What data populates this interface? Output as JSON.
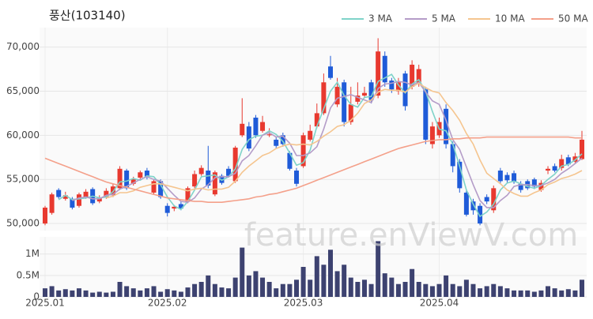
{
  "watermark": "feature.enViewV.com",
  "chart_data": [
    {
      "type": "candlestick",
      "title": "풍산(103140)",
      "open": [
        50000,
        51200,
        53800,
        52800,
        52800,
        52000,
        53000,
        53900,
        52500,
        53000,
        53200,
        54000,
        56000,
        54500,
        55200,
        56000,
        53500,
        54800,
        52000,
        51700,
        52200,
        52500,
        54200,
        55600,
        56000,
        53300,
        55400,
        56200,
        54800,
        60000,
        61000,
        62000,
        60500,
        60000,
        59500,
        60000,
        58000,
        56000,
        56500,
        59500,
        61000,
        62500,
        67800,
        63500,
        66000,
        61500,
        63800,
        64500,
        66000,
        64500,
        69000,
        66200,
        65000,
        67000,
        65500,
        65800,
        65200,
        59000,
        60000,
        63000,
        59000,
        57000,
        53500,
        52500,
        52000,
        53000,
        51500,
        56000,
        55500,
        55700,
        54500,
        54800,
        55000,
        53800,
        56000,
        56500,
        56300,
        57500,
        57000,
        57300
      ],
      "high": [
        52000,
        53500,
        54000,
        53600,
        53000,
        53500,
        53900,
        54100,
        53200,
        54000,
        54500,
        56500,
        56200,
        55300,
        56000,
        56300,
        55000,
        55000,
        52300,
        52100,
        52500,
        54200,
        56000,
        56600,
        58800,
        56000,
        55600,
        56500,
        58800,
        64200,
        61500,
        62300,
        62200,
        60800,
        59800,
        60300,
        58200,
        56300,
        60300,
        61200,
        63600,
        67000,
        69000,
        66500,
        66300,
        65500,
        66000,
        65500,
        66300,
        71000,
        69500,
        66500,
        66500,
        67300,
        68500,
        68000,
        65500,
        61500,
        62000,
        63500,
        59300,
        57300,
        53800,
        52800,
        52300,
        53300,
        54300,
        56300,
        55800,
        56000,
        54800,
        55000,
        55200,
        54900,
        56500,
        56800,
        57800,
        57800,
        58000,
        60500
      ],
      "low": [
        49800,
        51000,
        52800,
        52600,
        51600,
        51800,
        52800,
        52100,
        52300,
        52800,
        53000,
        53800,
        53800,
        54300,
        55000,
        55000,
        53300,
        52800,
        50800,
        51400,
        51500,
        52300,
        54000,
        55400,
        54000,
        53100,
        54400,
        55200,
        54600,
        59800,
        58200,
        59700,
        60300,
        59800,
        58500,
        58700,
        56000,
        54200,
        56300,
        59300,
        60800,
        62300,
        66300,
        63200,
        61000,
        61200,
        63500,
        64200,
        63600,
        64200,
        65500,
        64800,
        64600,
        62800,
        65200,
        65500,
        59000,
        58500,
        59700,
        58500,
        55800,
        53500,
        50800,
        51000,
        49800,
        52200,
        51200,
        54500,
        54600,
        54500,
        53500,
        53800,
        53900,
        53600,
        55600,
        55800,
        56000,
        56500,
        56800,
        57200
      ],
      "close": [
        51800,
        53300,
        53000,
        53200,
        51800,
        53300,
        53600,
        52300,
        52900,
        53700,
        54200,
        56200,
        54000,
        55000,
        55800,
        55300,
        54800,
        53000,
        51200,
        51900,
        51700,
        54000,
        55600,
        56300,
        54300,
        55800,
        54600,
        55400,
        58600,
        61300,
        58500,
        60000,
        61500,
        60100,
        58800,
        59000,
        56200,
        54500,
        60000,
        60500,
        62500,
        66000,
        66500,
        65500,
        61500,
        63500,
        64500,
        64800,
        64000,
        69500,
        66000,
        65200,
        66000,
        63300,
        68000,
        67500,
        59500,
        61000,
        61500,
        59000,
        56500,
        54000,
        51000,
        51500,
        50000,
        52500,
        54000,
        54800,
        54900,
        54700,
        53800,
        54000,
        54200,
        54600,
        56200,
        56000,
        57300,
        56700,
        57600,
        59500
      ],
      "up_color": "#e8392f",
      "down_color": "#1f5bd8",
      "series": [
        {
          "name": "3 MA",
          "color": "#7fd3c9",
          "values": [
            null,
            null,
            52700,
            53200,
            52700,
            52800,
            52900,
            53100,
            52900,
            53000,
            53600,
            54700,
            54800,
            55100,
            54900,
            55400,
            55300,
            54400,
            53000,
            52000,
            51600,
            52500,
            53800,
            55300,
            55400,
            55500,
            54900,
            55300,
            56200,
            58400,
            59500,
            59900,
            60000,
            60500,
            60100,
            59300,
            58000,
            56600,
            56900,
            58300,
            61000,
            63000,
            65000,
            66000,
            64500,
            63500,
            63200,
            64300,
            64400,
            66100,
            66500,
            66900,
            65700,
            64800,
            65800,
            66300,
            65000,
            62700,
            60700,
            60500,
            59000,
            56500,
            53800,
            52200,
            50800,
            51300,
            52200,
            53800,
            54600,
            54800,
            54500,
            54200,
            54000,
            54300,
            55000,
            55600,
            56500,
            56700,
            57200,
            57900
          ]
        },
        {
          "name": "5 MA",
          "color": "#b49cc8",
          "values": [
            null,
            null,
            null,
            null,
            52600,
            52900,
            53000,
            52800,
            52800,
            53200,
            53300,
            53900,
            54200,
            54600,
            55000,
            55300,
            55000,
            54800,
            54000,
            53200,
            52500,
            52400,
            52900,
            53900,
            54400,
            55200,
            55300,
            55300,
            55700,
            57100,
            57700,
            58800,
            60000,
            60300,
            59800,
            59900,
            59100,
            57700,
            57700,
            58000,
            58700,
            60700,
            63100,
            64200,
            64400,
            64600,
            64300,
            64000,
            63700,
            65300,
            65800,
            65900,
            66100,
            66000,
            65700,
            66000,
            64900,
            63900,
            63500,
            61700,
            59500,
            58400,
            56400,
            54400,
            52600,
            51800,
            51800,
            52600,
            53200,
            54200,
            54400,
            54400,
            54300,
            54300,
            54600,
            55000,
            55700,
            56200,
            56800,
            57400
          ]
        },
        {
          "name": "10 MA",
          "color": "#f5c58f",
          "values": [
            null,
            null,
            null,
            null,
            null,
            null,
            null,
            null,
            null,
            52900,
            53100,
            53500,
            53500,
            53700,
            54100,
            54300,
            54500,
            54500,
            54300,
            54100,
            53900,
            53700,
            53900,
            54000,
            53800,
            53900,
            53900,
            54100,
            54800,
            55800,
            56500,
            57100,
            57700,
            58000,
            58500,
            58800,
            59000,
            58900,
            59000,
            58900,
            59300,
            59900,
            60400,
            61000,
            61200,
            61700,
            62500,
            63600,
            64000,
            64900,
            65200,
            65100,
            65100,
            64900,
            65500,
            65900,
            65400,
            65000,
            64800,
            63700,
            62800,
            61700,
            60200,
            59000,
            57200,
            55700,
            55100,
            54500,
            53800,
            53400,
            53100,
            53100,
            53500,
            53800,
            54400,
            54700,
            55100,
            55300,
            55600,
            56000
          ]
        },
        {
          "name": "50 MA",
          "color": "#f4a08a",
          "values": [
            57400,
            57100,
            56800,
            56500,
            56200,
            55900,
            55600,
            55300,
            55000,
            54700,
            54500,
            54300,
            54100,
            53900,
            53700,
            53500,
            53300,
            53100,
            52900,
            52800,
            52700,
            52600,
            52500,
            52500,
            52400,
            52400,
            52400,
            52500,
            52600,
            52700,
            52800,
            53000,
            53100,
            53300,
            53400,
            53600,
            53800,
            54000,
            54300,
            54600,
            54900,
            55200,
            55500,
            55800,
            56100,
            56400,
            56700,
            57000,
            57300,
            57600,
            57900,
            58200,
            58500,
            58700,
            58900,
            59100,
            59300,
            59400,
            59500,
            59500,
            59600,
            59600,
            59700,
            59700,
            59700,
            59800,
            59800,
            59800,
            59800,
            59800,
            59800,
            59800,
            59800,
            59800,
            59800,
            59800,
            59800,
            59800,
            59700,
            59700
          ]
        }
      ],
      "ylim": [
        49200,
        72200
      ],
      "yticks": [
        {
          "value": 50000,
          "label": "50,000"
        },
        {
          "value": 55000,
          "label": "55,000"
        },
        {
          "value": 60000,
          "label": "60,000"
        },
        {
          "value": 65000,
          "label": "65,000"
        },
        {
          "value": 70000,
          "label": "70,000"
        }
      ],
      "grid": true
    },
    {
      "type": "bar",
      "categories": [
        "2025.01",
        null,
        null,
        null,
        null,
        null,
        null,
        null,
        null,
        null,
        null,
        null,
        null,
        null,
        null,
        null,
        null,
        null,
        "2025.02",
        null,
        null,
        null,
        null,
        null,
        null,
        null,
        null,
        null,
        null,
        null,
        null,
        null,
        null,
        null,
        null,
        null,
        null,
        null,
        "2025.03",
        null,
        null,
        null,
        null,
        null,
        null,
        null,
        null,
        null,
        null,
        null,
        null,
        null,
        null,
        null,
        null,
        null,
        null,
        null,
        "2025.04",
        null,
        null,
        null,
        null,
        null,
        null,
        null,
        null,
        null,
        null,
        null,
        null,
        null,
        null,
        null,
        null,
        null,
        null,
        null,
        null,
        null
      ],
      "values": [
        200000,
        250000,
        150000,
        180000,
        150000,
        200000,
        150000,
        100000,
        120000,
        100000,
        120000,
        350000,
        250000,
        200000,
        150000,
        200000,
        250000,
        120000,
        180000,
        150000,
        120000,
        220000,
        300000,
        350000,
        500000,
        300000,
        220000,
        200000,
        450000,
        1150000,
        500000,
        600000,
        450000,
        350000,
        200000,
        300000,
        300000,
        400000,
        700000,
        400000,
        950000,
        750000,
        1100000,
        600000,
        750000,
        450000,
        350000,
        400000,
        300000,
        1300000,
        550000,
        450000,
        300000,
        350000,
        650000,
        350000,
        300000,
        250000,
        300000,
        500000,
        300000,
        250000,
        400000,
        300000,
        200000,
        250000,
        300000,
        250000,
        200000,
        150000,
        150000,
        150000,
        120000,
        150000,
        250000,
        200000,
        150000,
        180000,
        150000,
        400000
      ],
      "color": "#3d4270",
      "ylim": [
        0,
        1400000
      ],
      "yticks": [
        0,
        {
          "value": 500000,
          "label": "0.5M"
        },
        {
          "value": 1000000,
          "label": "1M"
        }
      ],
      "grid": true
    }
  ]
}
